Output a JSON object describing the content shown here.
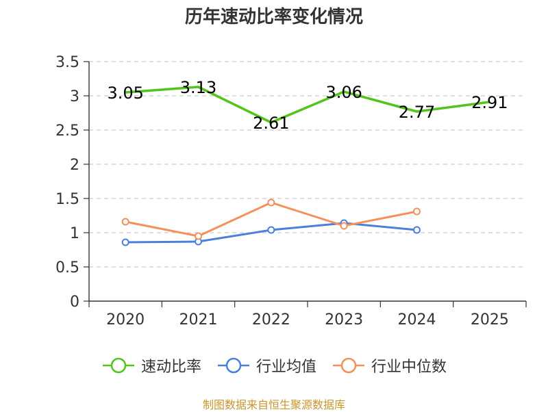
{
  "chart_data": {
    "type": "line",
    "title": "历年速动比率变化情况",
    "categories": [
      "2020",
      "2021",
      "2022",
      "2023",
      "2024",
      "2025"
    ],
    "ylim": [
      0,
      3.5
    ],
    "yticks": [
      "0",
      "0.5",
      "1",
      "1.5",
      "2",
      "2.5",
      "3",
      "3.5"
    ],
    "grid": true,
    "legend_position": "bottom",
    "series": [
      {
        "name": "速动比率",
        "color": "#52c41a",
        "markers": false,
        "show_labels": true,
        "labels": [
          "3.05",
          "3.13",
          "2.61",
          "3.06",
          "2.77",
          "2.91"
        ],
        "values": [
          3.05,
          3.13,
          2.61,
          3.06,
          2.77,
          2.91
        ]
      },
      {
        "name": "行业均值",
        "color": "#4a7fde",
        "markers": true,
        "show_labels": false,
        "values": [
          0.86,
          0.87,
          1.04,
          1.14,
          1.04,
          null
        ]
      },
      {
        "name": "行业中位数",
        "color": "#f5905a",
        "markers": true,
        "show_labels": false,
        "values": [
          1.16,
          0.95,
          1.44,
          1.1,
          1.31,
          null
        ]
      }
    ]
  },
  "source": "制图数据来自恒生聚源数据库"
}
